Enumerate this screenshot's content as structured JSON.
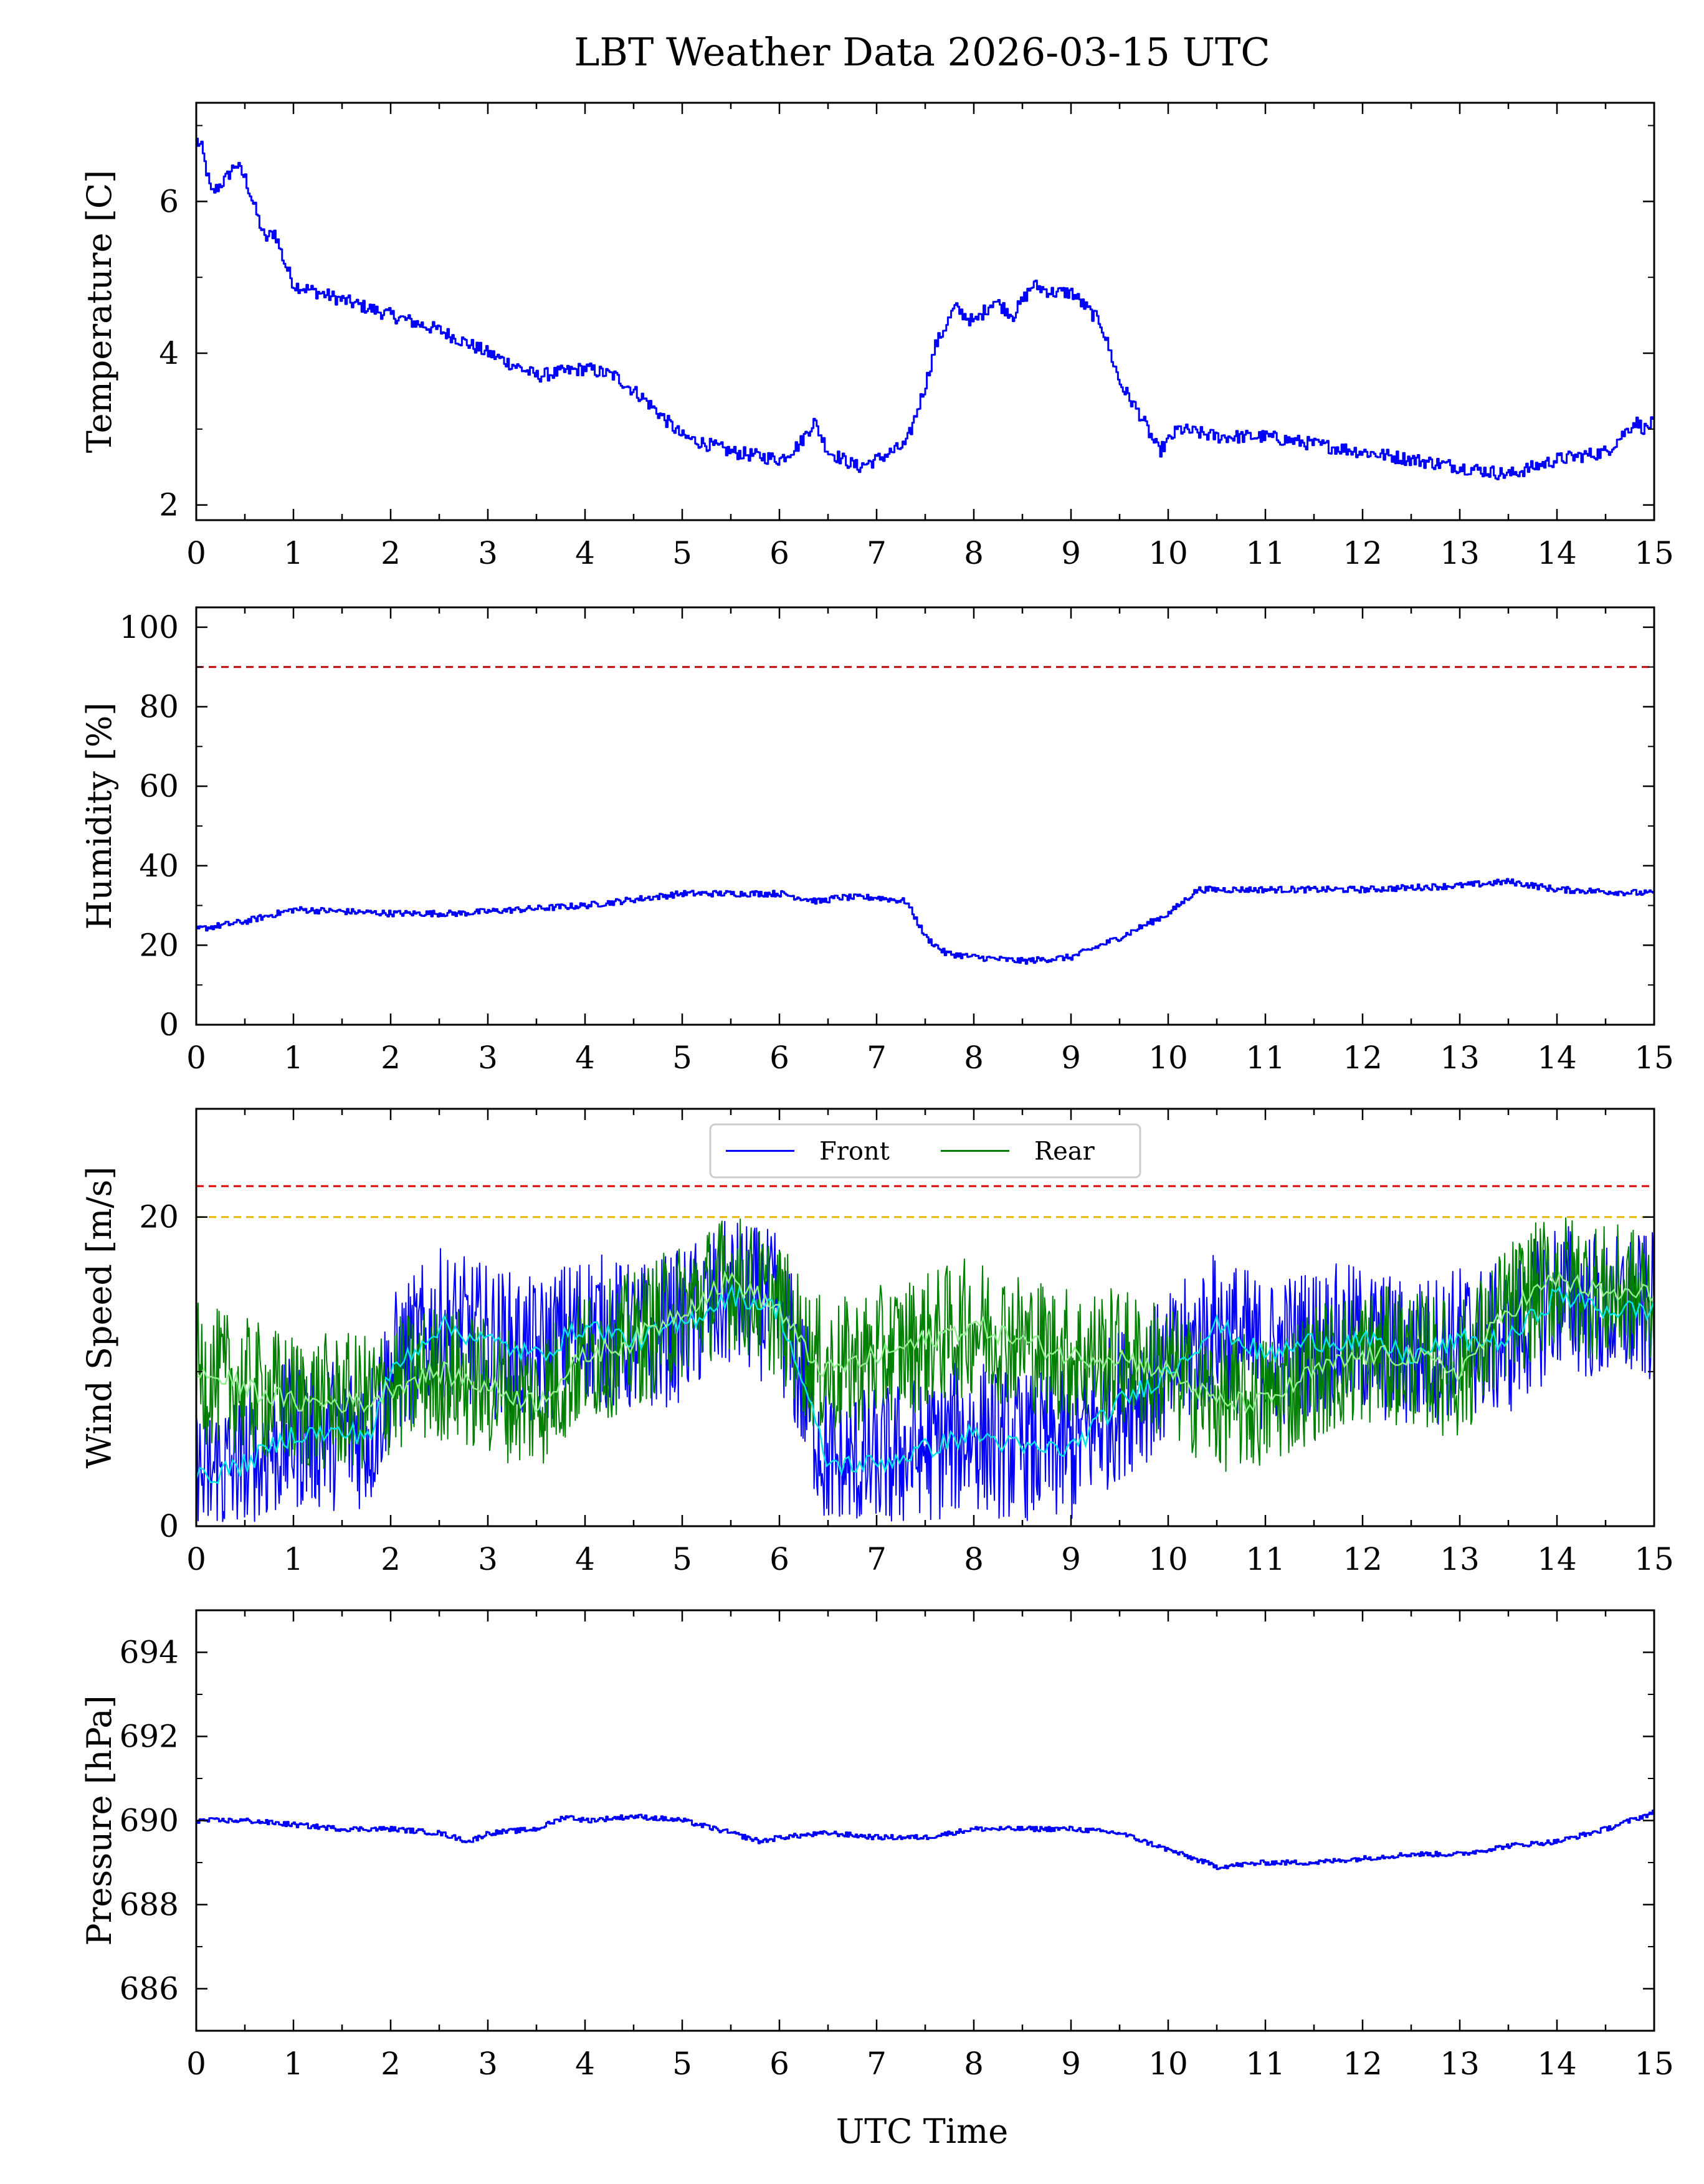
{
  "chart_data": {
    "type": "line",
    "title": "LBT Weather Data 2026-03-15 UTC",
    "xlabel": "UTC Time",
    "xlim": [
      0,
      15
    ],
    "xticks": [
      0,
      1,
      2,
      3,
      4,
      5,
      6,
      7,
      8,
      9,
      10,
      11,
      12,
      13,
      14,
      15
    ],
    "panels": [
      {
        "id": "temperature",
        "ylabel": "Temperature [C]",
        "ylim": [
          1.8,
          7.3
        ],
        "yticks": [
          2,
          4,
          6
        ],
        "series": [
          {
            "name": "Temperature",
            "color": "#0000ff",
            "x": [
              0,
              0.05,
              0.15,
              0.3,
              0.4,
              0.5,
              0.6,
              0.7,
              0.8,
              0.9,
              1.0,
              1.5,
              2.0,
              2.5,
              3.0,
              3.5,
              4.0,
              4.3,
              4.6,
              5.0,
              5.5,
              6.0,
              6.2,
              6.35,
              6.5,
              6.8,
              7.0,
              7.3,
              7.5,
              7.6,
              7.8,
              8.0,
              8.2,
              8.4,
              8.6,
              8.8,
              9.0,
              9.3,
              9.5,
              9.7,
              9.9,
              10.1,
              10.5,
              11.0,
              11.5,
              12.0,
              12.5,
              13.0,
              13.5,
              14.0,
              14.5,
              14.8,
              14.9,
              15.0
            ],
            "y": [
              6.8,
              6.7,
              6.1,
              6.3,
              6.5,
              6.3,
              5.9,
              5.5,
              5.6,
              5.2,
              4.9,
              4.7,
              4.5,
              4.3,
              4.0,
              3.7,
              3.8,
              3.7,
              3.4,
              2.9,
              2.7,
              2.6,
              2.8,
              3.1,
              2.7,
              2.5,
              2.6,
              2.8,
              3.6,
              4.1,
              4.6,
              4.4,
              4.7,
              4.5,
              4.9,
              4.8,
              4.8,
              4.4,
              3.6,
              3.2,
              2.7,
              3.0,
              2.9,
              2.9,
              2.8,
              2.7,
              2.6,
              2.5,
              2.4,
              2.6,
              2.7,
              3.1,
              3.0,
              3.1
            ]
          }
        ],
        "hlines": []
      },
      {
        "id": "humidity",
        "ylabel": "Humidity [%]",
        "ylim": [
          0,
          105
        ],
        "yticks": [
          0,
          20,
          40,
          60,
          80,
          100
        ],
        "series": [
          {
            "name": "Humidity",
            "color": "#0000ff",
            "x": [
              0,
              0.5,
              1.0,
              1.5,
              2.0,
              2.7,
              3.0,
              4.0,
              5.0,
              5.5,
              6.0,
              6.4,
              6.6,
              7.0,
              7.3,
              7.5,
              7.7,
              8.0,
              8.5,
              9.0,
              9.5,
              10.0,
              10.3,
              11.0,
              12.0,
              13.0,
              13.5,
              14.0,
              15.0
            ],
            "y": [
              24,
              26,
              29,
              28.5,
              28,
              28,
              28.5,
              30,
              33,
              33,
              33,
              31,
              32,
              32,
              31,
              22,
              18,
              17,
              16,
              17,
              22,
              28,
              34,
              34,
              34,
              35,
              36,
              34,
              33
            ]
          }
        ],
        "hlines": [
          {
            "y": 90,
            "color": "#c00000",
            "dash": "12,8"
          }
        ]
      },
      {
        "id": "wind",
        "ylabel": "Wind Speed [m/s]",
        "ylim": [
          0,
          27
        ],
        "yticks": [
          0,
          20
        ],
        "legend": [
          "Front",
          "Rear"
        ],
        "legend_position": "top-center",
        "series": [
          {
            "name": "Front",
            "color": "#0000ff",
            "x": [
              0,
              0.5,
              1.0,
              1.8,
              2.0,
              2.5,
              3.0,
              3.5,
              4.0,
              4.5,
              5.0,
              5.5,
              6.0,
              6.3,
              6.5,
              7.0,
              7.5,
              8.0,
              8.5,
              9.0,
              9.5,
              10.0,
              10.5,
              11.0,
              11.5,
              12.0,
              12.5,
              13.0,
              13.5,
              14.0,
              14.5,
              15.0
            ],
            "y": [
              3,
              4,
              6,
              6,
              10,
              13,
              12,
              11,
              13,
              12,
              13,
              15,
              14,
              8,
              4,
              4,
              5,
              6,
              5,
              5,
              8,
              10,
              13,
              11,
              12,
              12,
              11,
              12,
              12,
              15,
              14,
              14
            ],
            "smoothed_color": "#00e5e5"
          },
          {
            "name": "Rear",
            "color": "#008000",
            "x": [
              0,
              0.5,
              1.0,
              1.8,
              2.0,
              2.5,
              3.0,
              3.5,
              4.0,
              4.5,
              5.0,
              5.5,
              6.0,
              6.3,
              6.5,
              7.0,
              7.5,
              8.0,
              8.5,
              9.0,
              9.5,
              10.0,
              10.5,
              11.0,
              11.5,
              12.0,
              12.5,
              13.0,
              13.5,
              14.0,
              14.5,
              15.0
            ],
            "y": [
              10,
              9,
              8,
              8,
              9,
              10,
              9,
              8,
              11,
              12,
              14,
              16,
              14,
              11,
              10,
              11,
              12,
              13,
              12,
              11,
              11,
              10,
              8,
              8,
              10,
              11,
              11,
              10,
              14,
              16,
              15,
              15
            ],
            "smoothed_color": "#90ee90"
          }
        ],
        "hlines": [
          {
            "y": 22,
            "color": "#dd0000",
            "dash": "12,8"
          },
          {
            "y": 20,
            "color": "#e6b800",
            "dash": "12,8"
          }
        ]
      },
      {
        "id": "pressure",
        "ylabel": "Pressure [hPa]",
        "ylim": [
          685,
          695
        ],
        "yticks": [
          686,
          688,
          690,
          692,
          694
        ],
        "series": [
          {
            "name": "Pressure",
            "color": "#0000ff",
            "x": [
              0,
              0.5,
              1.0,
              1.5,
              2.0,
              2.5,
              2.8,
              3.0,
              3.5,
              3.8,
              4.0,
              4.5,
              5.0,
              5.5,
              5.8,
              6.0,
              6.5,
              7.0,
              7.5,
              8.0,
              8.5,
              9.0,
              9.5,
              10.0,
              10.5,
              11.0,
              11.5,
              12.0,
              12.5,
              13.0,
              13.5,
              14.0,
              14.5,
              15.0
            ],
            "y": [
              690,
              690,
              689.9,
              689.8,
              689.8,
              689.7,
              689.5,
              689.7,
              689.8,
              690.1,
              690.0,
              690.1,
              690.0,
              689.7,
              689.5,
              689.6,
              689.7,
              689.6,
              689.6,
              689.8,
              689.8,
              689.8,
              689.7,
              689.3,
              688.9,
              689.0,
              689.0,
              689.1,
              689.2,
              689.2,
              689.4,
              689.5,
              689.8,
              690.2
            ]
          }
        ],
        "hlines": []
      }
    ]
  }
}
